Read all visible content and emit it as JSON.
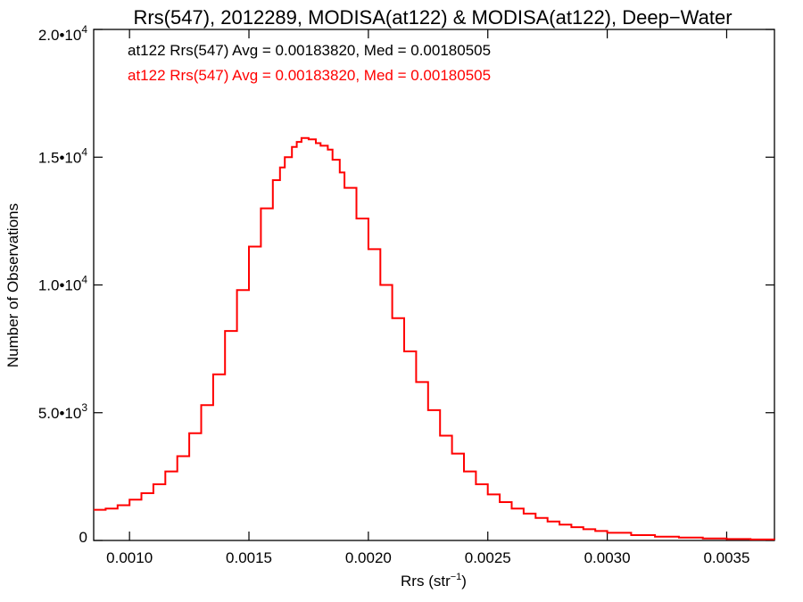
{
  "chart_data": {
    "type": "line",
    "title": "Rrs(547), 2012289, MODISA(at122) & MODISA(at122), Deep−Water",
    "xlabel_base": "Rrs (str",
    "xlabel_sup": "−1",
    "xlabel_end": ")",
    "ylabel": "Number of Observations",
    "xlim": [
      0.00085,
      0.0037
    ],
    "ylim": [
      0,
      20000
    ],
    "x_ticks": [
      {
        "value": 0.001,
        "label": "0.0010"
      },
      {
        "value": 0.0015,
        "label": "0.0015"
      },
      {
        "value": 0.002,
        "label": "0.0020"
      },
      {
        "value": 0.0025,
        "label": "0.0025"
      },
      {
        "value": 0.003,
        "label": "0.0030"
      },
      {
        "value": 0.0035,
        "label": "0.0035"
      }
    ],
    "y_ticks": [
      {
        "value": 0,
        "mant": "0",
        "exp": ""
      },
      {
        "value": 5000,
        "mant": "5.0•10",
        "exp": "3"
      },
      {
        "value": 10000,
        "mant": "1.0•10",
        "exp": "4"
      },
      {
        "value": 15000,
        "mant": "1.5•10",
        "exp": "4"
      },
      {
        "value": 20000,
        "mant": "2.0•10",
        "exp": "4"
      }
    ],
    "legend": [
      {
        "text": "at122 Rrs(547) Avg = 0.00183820, Med = 0.00180505",
        "color": "#000000"
      },
      {
        "text": "at122 Rrs(547) Avg = 0.00183820, Med = 0.00180505",
        "color": "#ff0000"
      }
    ],
    "series": [
      {
        "color": "#ff0000",
        "style": "step",
        "x": [
          0.00085,
          0.0009,
          0.00095,
          0.001,
          0.00105,
          0.0011,
          0.00115,
          0.0012,
          0.00125,
          0.0013,
          0.00135,
          0.0014,
          0.00145,
          0.0015,
          0.00155,
          0.0016,
          0.00163,
          0.00165,
          0.00168,
          0.0017,
          0.00172,
          0.00175,
          0.00178,
          0.0018,
          0.00183,
          0.00185,
          0.00188,
          0.0019,
          0.00195,
          0.002,
          0.00205,
          0.0021,
          0.00215,
          0.0022,
          0.00225,
          0.0023,
          0.00235,
          0.0024,
          0.00245,
          0.0025,
          0.00255,
          0.0026,
          0.00265,
          0.0027,
          0.00275,
          0.0028,
          0.00285,
          0.0029,
          0.00295,
          0.003,
          0.0031,
          0.0032,
          0.0033,
          0.0034,
          0.0035,
          0.0036,
          0.0037
        ],
        "y": [
          1200,
          1250,
          1380,
          1600,
          1850,
          2200,
          2700,
          3300,
          4200,
          5300,
          6500,
          8200,
          9800,
          11500,
          13000,
          14100,
          14600,
          15000,
          15400,
          15600,
          15750,
          15700,
          15550,
          15450,
          15300,
          14900,
          14400,
          13800,
          12600,
          11400,
          10000,
          8700,
          7400,
          6200,
          5100,
          4100,
          3400,
          2700,
          2200,
          1800,
          1500,
          1250,
          1050,
          880,
          740,
          620,
          520,
          440,
          370,
          300,
          210,
          150,
          110,
          80,
          55,
          40,
          30
        ]
      }
    ]
  }
}
